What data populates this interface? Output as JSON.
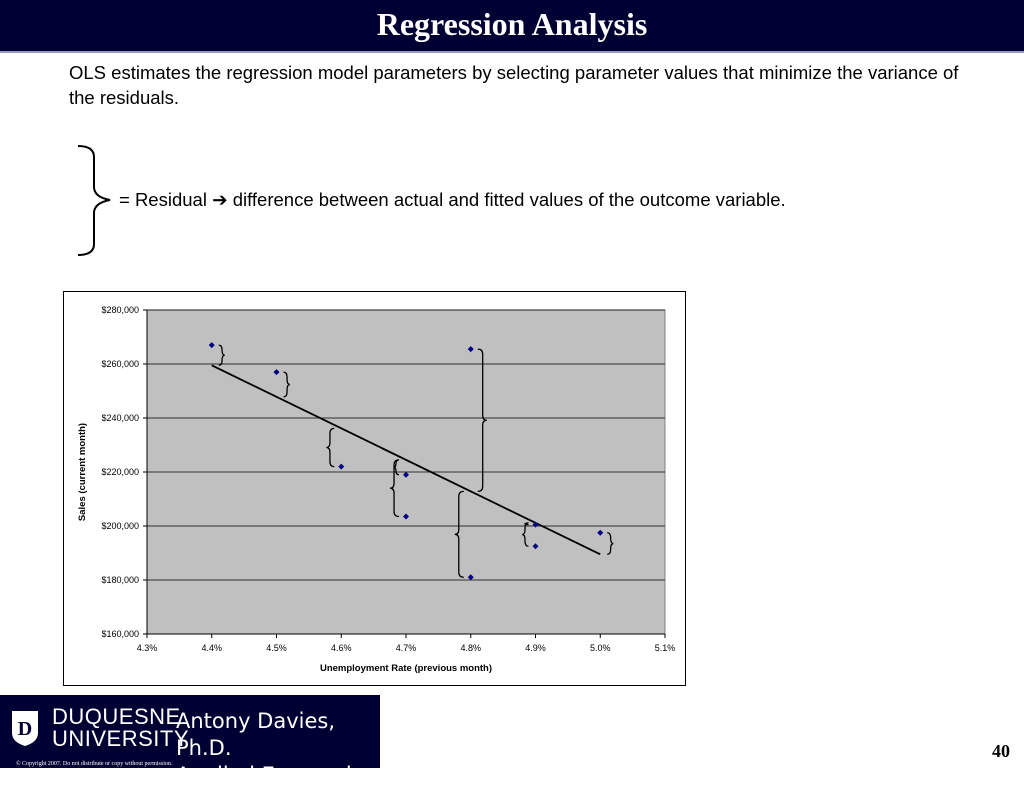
{
  "slide": {
    "title": "Regression Analysis",
    "intro": "OLS estimates the regression model parameters by selecting parameter values that minimize the variance of the residuals.",
    "legend_text": "= Residual ➔ difference between actual and fitted values of the outcome variable.",
    "page_number": "40"
  },
  "footer": {
    "university_line1": "DUQUESNE",
    "university_line2": "UNIVERSITY",
    "author_line1": "Antony Davies, Ph.D.",
    "author_line2": "Applied Economics",
    "copyright": "© Copyright 2007. Do not distribute or copy without permission."
  },
  "colors": {
    "title_bar": "#000033",
    "plot_area": "#c0c0c0",
    "marker": "#000080",
    "line": "#000000"
  },
  "chart_data": {
    "type": "scatter",
    "title": "",
    "xlabel": "Unemployment Rate (previous month)",
    "ylabel": "Sales (current month)",
    "xlim": [
      4.3,
      5.1
    ],
    "ylim": [
      160000,
      280000
    ],
    "x_ticks": [
      "4.3%",
      "4.4%",
      "4.5%",
      "4.6%",
      "4.7%",
      "4.8%",
      "4.9%",
      "5.0%",
      "5.1%"
    ],
    "y_ticks": [
      "$160,000",
      "$180,000",
      "$200,000",
      "$220,000",
      "$240,000",
      "$260,000",
      "$280,000"
    ],
    "grid": true,
    "legend": "none",
    "points": [
      {
        "x": 4.4,
        "y": 267000
      },
      {
        "x": 4.5,
        "y": 257000
      },
      {
        "x": 4.6,
        "y": 222000
      },
      {
        "x": 4.7,
        "y": 219000
      },
      {
        "x": 4.7,
        "y": 203500
      },
      {
        "x": 4.8,
        "y": 265500
      },
      {
        "x": 4.8,
        "y": 181000
      },
      {
        "x": 4.9,
        "y": 200500
      },
      {
        "x": 4.9,
        "y": 192500
      },
      {
        "x": 5.0,
        "y": 197500
      }
    ],
    "fitted_line": {
      "x": [
        4.4,
        5.0
      ],
      "y": [
        259500,
        189500
      ]
    }
  }
}
